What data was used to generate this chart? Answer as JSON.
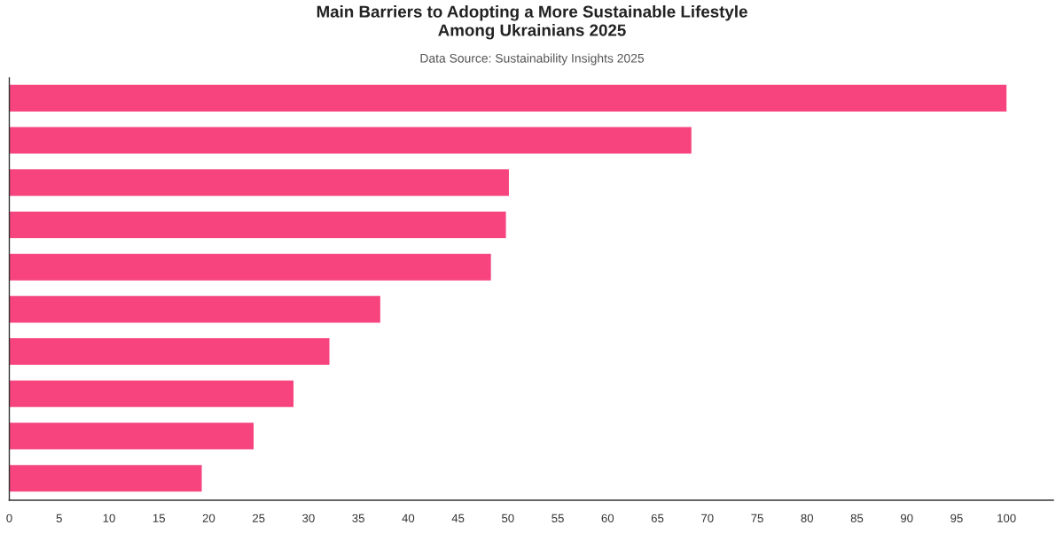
{
  "chart_data": {
    "type": "bar",
    "orientation": "horizontal",
    "title": "Main Barriers to Adopting a More Sustainable Lifestyle\nAmong Ukrainians 2025",
    "subtitle": "Data Source: Sustainability Insights 2025",
    "categories": [
      null,
      null,
      null,
      null,
      null,
      null,
      null,
      null,
      null,
      null
    ],
    "values": [
      100,
      68.4,
      50.1,
      49.8,
      48.3,
      37.2,
      32.1,
      28.5,
      24.5,
      19.3
    ],
    "color": "#f7447e",
    "xlim": [
      0,
      104.7
    ],
    "xticks": [
      0,
      5,
      10,
      15,
      20,
      25,
      30,
      35,
      40,
      45,
      50,
      55,
      60,
      65,
      70,
      75,
      80,
      85,
      90,
      95,
      100
    ],
    "tick_labels": "x",
    "grid": false
  }
}
